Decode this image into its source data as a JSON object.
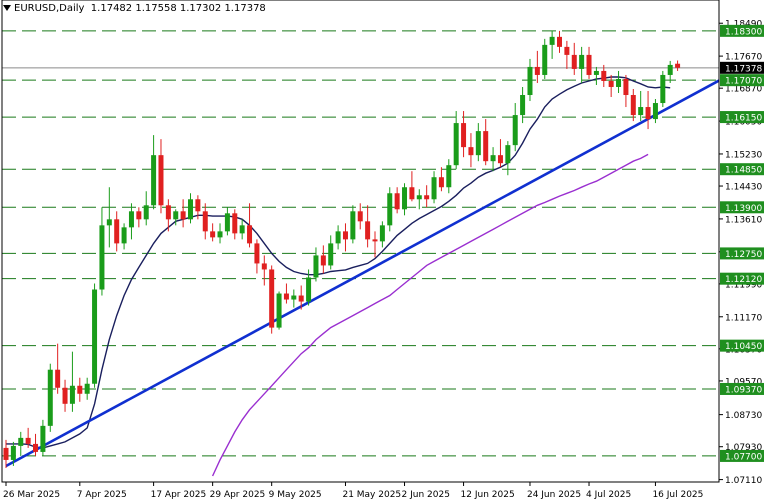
{
  "header": {
    "symbol": "EURUSD,Daily",
    "open": "1.17482",
    "high": "1.17558",
    "low": "1.17302",
    "close": "1.17378"
  },
  "colors": {
    "bull": "#1a9c1a",
    "bear": "#e02020",
    "ema20": "#1a1f5e",
    "ema50": "#9a2fd0",
    "trendline": "#1030d0",
    "level_line": "#1a7a1a",
    "level_label_bg": "#1f8f1f",
    "price_label_bg": "#000000"
  },
  "chart_data": {
    "type": "candlestick",
    "ylim": [
      1.0705,
      1.1872
    ],
    "y_ticks": [
      "1.18490",
      "1.17670",
      "1.16870",
      "1.16050",
      "1.15230",
      "1.14430",
      "1.13610",
      "1.12790",
      "1.11990",
      "1.11170",
      "1.10370",
      "1.09570",
      "1.08730",
      "1.07930",
      "1.07110"
    ],
    "x_tick_labels": [
      {
        "label": "26 Mar 2025",
        "index": 0
      },
      {
        "label": "7 Apr 2025",
        "index": 10
      },
      {
        "label": "17 Apr 2025",
        "index": 20
      },
      {
        "label": "29 Apr 2025",
        "index": 28
      },
      {
        "label": "9 May 2025",
        "index": 36
      },
      {
        "label": "21 May 2025",
        "index": 46
      },
      {
        "label": "2 Jun 2025",
        "index": 54
      },
      {
        "label": "12 Jun 2025",
        "index": 62
      },
      {
        "label": "24 Jun 2025",
        "index": 71
      },
      {
        "label": "4 Jul 2025",
        "index": 79
      },
      {
        "label": "16 Jul 2025",
        "index": 88
      }
    ],
    "levels": [
      {
        "price": 1.183,
        "label": "1.18300"
      },
      {
        "price": 1.1707,
        "label": "1.17070"
      },
      {
        "price": 1.1615,
        "label": "1.16150"
      },
      {
        "price": 1.1485,
        "label": "1.14850"
      },
      {
        "price": 1.139,
        "label": "1.13900"
      },
      {
        "price": 1.1275,
        "label": "1.12750"
      },
      {
        "price": 1.1212,
        "label": "1.12120"
      },
      {
        "price": 1.1045,
        "label": "1.10450"
      },
      {
        "price": 1.0937,
        "label": "1.09370"
      },
      {
        "price": 1.077,
        "label": "1.07700"
      }
    ],
    "current_price": {
      "price": 1.17378,
      "label": "1.17378"
    },
    "candles": [
      [
        1.079,
        1.081,
        1.074,
        1.076
      ],
      [
        1.076,
        1.0805,
        1.0745,
        1.0795
      ],
      [
        1.0795,
        1.083,
        1.077,
        1.0815
      ],
      [
        1.0815,
        1.084,
        1.079,
        1.08
      ],
      [
        1.08,
        1.0825,
        1.077,
        1.078
      ],
      [
        1.078,
        1.086,
        1.077,
        1.0845
      ],
      [
        1.0845,
        1.1,
        1.083,
        1.0985
      ],
      [
        1.0985,
        1.105,
        1.0925,
        1.094
      ],
      [
        1.094,
        1.096,
        1.088,
        1.09
      ],
      [
        1.09,
        1.103,
        1.088,
        1.0945
      ],
      [
        1.0945,
        1.0965,
        1.0905,
        1.0925
      ],
      [
        1.0925,
        1.0965,
        1.091,
        1.095
      ],
      [
        1.095,
        1.12,
        1.094,
        1.1185
      ],
      [
        1.1185,
        1.139,
        1.117,
        1.1345
      ],
      [
        1.1345,
        1.144,
        1.129,
        1.136
      ],
      [
        1.136,
        1.138,
        1.128,
        1.13
      ],
      [
        1.13,
        1.135,
        1.1285,
        1.134
      ],
      [
        1.134,
        1.14,
        1.131,
        1.138
      ],
      [
        1.138,
        1.139,
        1.134,
        1.136
      ],
      [
        1.136,
        1.143,
        1.1345,
        1.1395
      ],
      [
        1.1395,
        1.157,
        1.1385,
        1.152
      ],
      [
        1.152,
        1.156,
        1.1375,
        1.1395
      ],
      [
        1.1395,
        1.141,
        1.133,
        1.136
      ],
      [
        1.136,
        1.1385,
        1.1345,
        1.138
      ],
      [
        1.138,
        1.141,
        1.134,
        1.136
      ],
      [
        1.136,
        1.1425,
        1.135,
        1.141
      ],
      [
        1.141,
        1.142,
        1.136,
        1.138
      ],
      [
        1.138,
        1.14,
        1.131,
        1.133
      ],
      [
        1.133,
        1.135,
        1.1305,
        1.1315
      ],
      [
        1.1315,
        1.135,
        1.13,
        1.133
      ],
      [
        1.133,
        1.139,
        1.132,
        1.1375
      ],
      [
        1.1375,
        1.1385,
        1.131,
        1.1325
      ],
      [
        1.1325,
        1.136,
        1.131,
        1.1345
      ],
      [
        1.1345,
        1.14,
        1.129,
        1.13
      ],
      [
        1.13,
        1.131,
        1.1225,
        1.125
      ],
      [
        1.125,
        1.127,
        1.1195,
        1.1235
      ],
      [
        1.1235,
        1.1245,
        1.1075,
        1.109
      ],
      [
        1.109,
        1.118,
        1.1085,
        1.1175
      ],
      [
        1.1175,
        1.12,
        1.115,
        1.116
      ],
      [
        1.116,
        1.1185,
        1.114,
        1.117
      ],
      [
        1.117,
        1.1195,
        1.1135,
        1.1155
      ],
      [
        1.1155,
        1.1235,
        1.1145,
        1.1215
      ],
      [
        1.1215,
        1.129,
        1.1205,
        1.127
      ],
      [
        1.127,
        1.1295,
        1.1225,
        1.1245
      ],
      [
        1.1245,
        1.132,
        1.1235,
        1.13
      ],
      [
        1.13,
        1.1345,
        1.1285,
        1.133
      ],
      [
        1.133,
        1.135,
        1.128,
        1.131
      ],
      [
        1.131,
        1.1395,
        1.13,
        1.138
      ],
      [
        1.138,
        1.14,
        1.1335,
        1.1355
      ],
      [
        1.1355,
        1.1395,
        1.129,
        1.131
      ],
      [
        1.131,
        1.133,
        1.1265,
        1.1305
      ],
      [
        1.1305,
        1.1355,
        1.129,
        1.1345
      ],
      [
        1.1345,
        1.144,
        1.133,
        1.1425
      ],
      [
        1.1425,
        1.144,
        1.1375,
        1.1385
      ],
      [
        1.1385,
        1.145,
        1.137,
        1.144
      ],
      [
        1.144,
        1.148,
        1.1405,
        1.141
      ],
      [
        1.141,
        1.1435,
        1.1385,
        1.142
      ],
      [
        1.142,
        1.1445,
        1.139,
        1.141
      ],
      [
        1.141,
        1.148,
        1.14,
        1.1465
      ],
      [
        1.1465,
        1.149,
        1.143,
        1.144
      ],
      [
        1.144,
        1.151,
        1.1425,
        1.1495
      ],
      [
        1.1495,
        1.163,
        1.1485,
        1.16
      ],
      [
        1.16,
        1.163,
        1.1515,
        1.154
      ],
      [
        1.154,
        1.1575,
        1.149,
        1.152
      ],
      [
        1.152,
        1.16,
        1.1505,
        1.158
      ],
      [
        1.158,
        1.161,
        1.1495,
        1.1505
      ],
      [
        1.1505,
        1.154,
        1.148,
        1.152
      ],
      [
        1.152,
        1.156,
        1.149,
        1.15
      ],
      [
        1.15,
        1.1555,
        1.147,
        1.1545
      ],
      [
        1.1545,
        1.165,
        1.153,
        1.162
      ],
      [
        1.162,
        1.169,
        1.16,
        1.167
      ],
      [
        1.167,
        1.176,
        1.1655,
        1.174
      ],
      [
        1.174,
        1.178,
        1.17,
        1.172
      ],
      [
        1.172,
        1.181,
        1.171,
        1.1795
      ],
      [
        1.1795,
        1.183,
        1.176,
        1.1815
      ],
      [
        1.1815,
        1.183,
        1.1775,
        1.179
      ],
      [
        1.179,
        1.1805,
        1.1735,
        1.177
      ],
      [
        1.177,
        1.18,
        1.172,
        1.1735
      ],
      [
        1.1735,
        1.179,
        1.17,
        1.177
      ],
      [
        1.177,
        1.179,
        1.171,
        1.172
      ],
      [
        1.172,
        1.174,
        1.1695,
        1.173
      ],
      [
        1.173,
        1.1745,
        1.169,
        1.1705
      ],
      [
        1.1705,
        1.172,
        1.1665,
        1.169
      ],
      [
        1.169,
        1.173,
        1.1675,
        1.171
      ],
      [
        1.171,
        1.172,
        1.164,
        1.167
      ],
      [
        1.167,
        1.1685,
        1.1605,
        1.162
      ],
      [
        1.162,
        1.168,
        1.1605,
        1.164
      ],
      [
        1.164,
        1.168,
        1.1585,
        1.161
      ],
      [
        1.161,
        1.166,
        1.16,
        1.165
      ],
      [
        1.165,
        1.173,
        1.164,
        1.172
      ],
      [
        1.172,
        1.1755,
        1.17,
        1.1745
      ],
      [
        1.1748,
        1.1756,
        1.173,
        1.1738
      ]
    ],
    "series": [
      {
        "name": "",
        "color_key": "ema20",
        "values": [
          1.08,
          1.08,
          1.08,
          1.0799,
          1.0792,
          1.079,
          1.0795,
          1.08,
          1.0805,
          1.0815,
          1.0825,
          1.084,
          1.09,
          1.0985,
          1.106,
          1.112,
          1.117,
          1.121,
          1.124,
          1.127,
          1.13,
          1.1325,
          1.134,
          1.1355,
          1.136,
          1.1365,
          1.137,
          1.137,
          1.1368,
          1.1368,
          1.1368,
          1.1366,
          1.136,
          1.1345,
          1.1325,
          1.13,
          1.1275,
          1.1255,
          1.124,
          1.123,
          1.1225,
          1.1222,
          1.1222,
          1.1225,
          1.123,
          1.1232,
          1.1234,
          1.124,
          1.1245,
          1.125,
          1.1262,
          1.128,
          1.13,
          1.132,
          1.1335,
          1.135,
          1.1362,
          1.1372,
          1.1382,
          1.1392,
          1.1405,
          1.142,
          1.1438,
          1.145,
          1.1465,
          1.1475,
          1.1482,
          1.149,
          1.15,
          1.152,
          1.155,
          1.1585,
          1.161,
          1.164,
          1.166,
          1.1672,
          1.1683,
          1.1692,
          1.17,
          1.1705,
          1.171,
          1.1712,
          1.1715,
          1.1715,
          1.1713,
          1.1705,
          1.1698,
          1.169,
          1.1688,
          1.169,
          1.1688
        ],
        "start": 0
      },
      {
        "name": "",
        "color_key": "ema50",
        "values": [
          1.072,
          1.076,
          1.0795,
          1.083,
          1.086,
          1.0885,
          1.0905,
          1.0925,
          1.0945,
          1.0965,
          1.0985,
          1.1005,
          1.1025,
          1.104,
          1.106,
          1.1075,
          1.109,
          1.11,
          1.111,
          1.112,
          1.113,
          1.114,
          1.115,
          1.116,
          1.117,
          1.1185,
          1.12,
          1.1215,
          1.123,
          1.1245,
          1.1255,
          1.1265,
          1.1275,
          1.1285,
          1.1295,
          1.1305,
          1.1315,
          1.1325,
          1.1335,
          1.1345,
          1.1355,
          1.1365,
          1.1375,
          1.1385,
          1.1395,
          1.1402,
          1.141,
          1.1418,
          1.1425,
          1.1432,
          1.144,
          1.1448,
          1.1455,
          1.1465,
          1.1475,
          1.1485,
          1.1495,
          1.1505,
          1.1512,
          1.1522
        ],
        "start": 28
      }
    ],
    "trendline": {
      "from": {
        "index": 0,
        "price": 1.0745
      },
      "to": {
        "index": 94,
        "price": 1.168
      }
    }
  }
}
